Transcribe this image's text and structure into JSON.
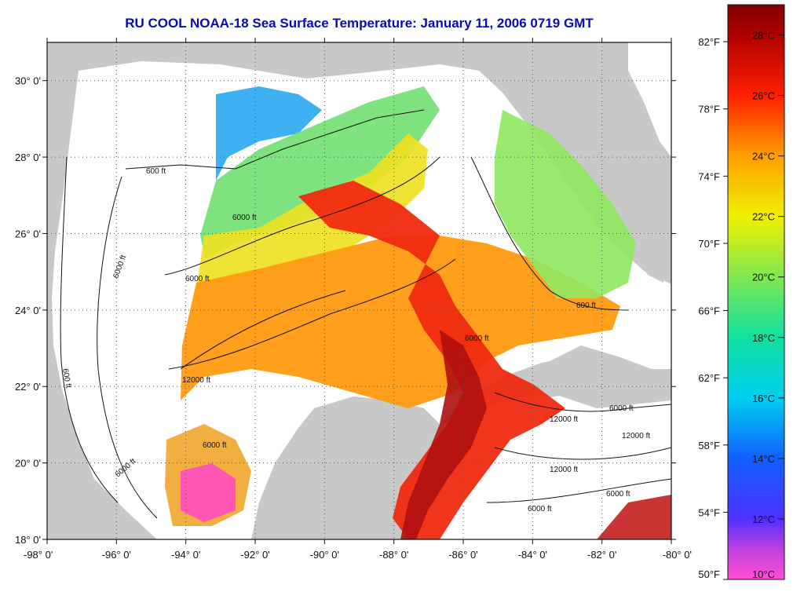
{
  "title": "RU COOL  NOAA-18  Sea Surface Temperature:  January 11, 2006 0719 GMT",
  "map": {
    "lon_range": [
      -98,
      -80
    ],
    "lat_range": [
      18,
      31
    ],
    "lon_ticks": [
      -98,
      -96,
      -94,
      -92,
      -90,
      -88,
      -86,
      -84,
      -82,
      -80
    ],
    "lon_labels": [
      "-98° 0'",
      "-96° 0'",
      "-94° 0'",
      "-92° 0'",
      "-90° 0'",
      "-88° 0'",
      "-86° 0'",
      "-84° 0'",
      "-82° 0'",
      "-80° 0'"
    ],
    "lat_ticks": [
      18,
      20,
      22,
      24,
      26,
      28,
      30
    ],
    "lat_labels": [
      "18° 0'",
      "20° 0'",
      "22° 0'",
      "24° 0'",
      "26° 0'",
      "28° 0'",
      "30° 0'"
    ],
    "grid": true,
    "contour_labels": [
      "600 ft",
      "6000 ft",
      "12000 ft"
    ],
    "colors": {
      "land": "#c8c8c8",
      "cloud": "#ffffff",
      "grid": "#555555"
    }
  },
  "colorbar": {
    "celsius_ticks": [
      10,
      12,
      14,
      16,
      18,
      20,
      22,
      24,
      26,
      28
    ],
    "celsius_labels": [
      "10°C",
      "12°C",
      "14°C",
      "16°C",
      "18°C",
      "20°C",
      "22°C",
      "24°C",
      "26°C",
      "28°C"
    ],
    "fahrenheit_ticks": [
      50,
      54,
      58,
      62,
      66,
      70,
      74,
      78,
      82
    ],
    "fahrenheit_labels": [
      "50°F",
      "54°F",
      "58°F",
      "62°F",
      "66°F",
      "70°F",
      "74°F",
      "78°F",
      "82°F"
    ],
    "range_c": [
      10,
      29
    ],
    "stops": [
      {
        "c": 10,
        "color": "#ff50d2"
      },
      {
        "c": 11,
        "color": "#c040e0"
      },
      {
        "c": 12,
        "color": "#5030ff"
      },
      {
        "c": 14,
        "color": "#1060ff"
      },
      {
        "c": 16,
        "color": "#00d0f0"
      },
      {
        "c": 18,
        "color": "#10e0a0"
      },
      {
        "c": 20,
        "color": "#80e850"
      },
      {
        "c": 22,
        "color": "#f0f000"
      },
      {
        "c": 24,
        "color": "#ffa000"
      },
      {
        "c": 26,
        "color": "#ff2000"
      },
      {
        "c": 28,
        "color": "#b00000"
      },
      {
        "c": 29,
        "color": "#800000"
      }
    ]
  }
}
